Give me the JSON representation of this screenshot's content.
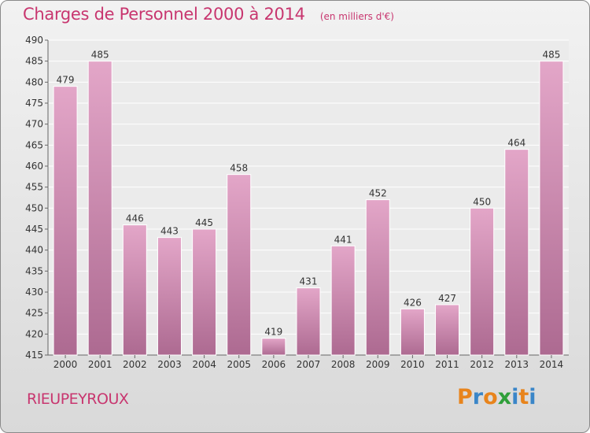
{
  "header": {
    "title": "Charges de Personnel 2000 à 2014",
    "subtitle": "(en milliers d'€)"
  },
  "footer": {
    "town": "RIEUPEYROUX",
    "logo": "Proxiti"
  },
  "colors": {
    "title": "#c8366f",
    "bar_top": "#e3a6c8",
    "bar_bottom": "#ad6a91",
    "logo": [
      "#e8841c",
      "#3a86c8",
      "#e8841c",
      "#2f9f3a",
      "#3a86c8",
      "#e8841c",
      "#3a86c8"
    ]
  },
  "chart_data": {
    "type": "bar",
    "categories": [
      "2000",
      "2001",
      "2002",
      "2003",
      "2004",
      "2005",
      "2006",
      "2007",
      "2008",
      "2009",
      "2010",
      "2011",
      "2012",
      "2013",
      "2014"
    ],
    "values": [
      479,
      485,
      446,
      443,
      445,
      458,
      419,
      431,
      441,
      452,
      426,
      427,
      450,
      464,
      485
    ],
    "ylim": [
      415,
      490
    ],
    "yticks": [
      415,
      420,
      425,
      430,
      435,
      440,
      445,
      450,
      455,
      460,
      465,
      470,
      475,
      480,
      485,
      490
    ],
    "grid": true,
    "data_labels": true
  }
}
